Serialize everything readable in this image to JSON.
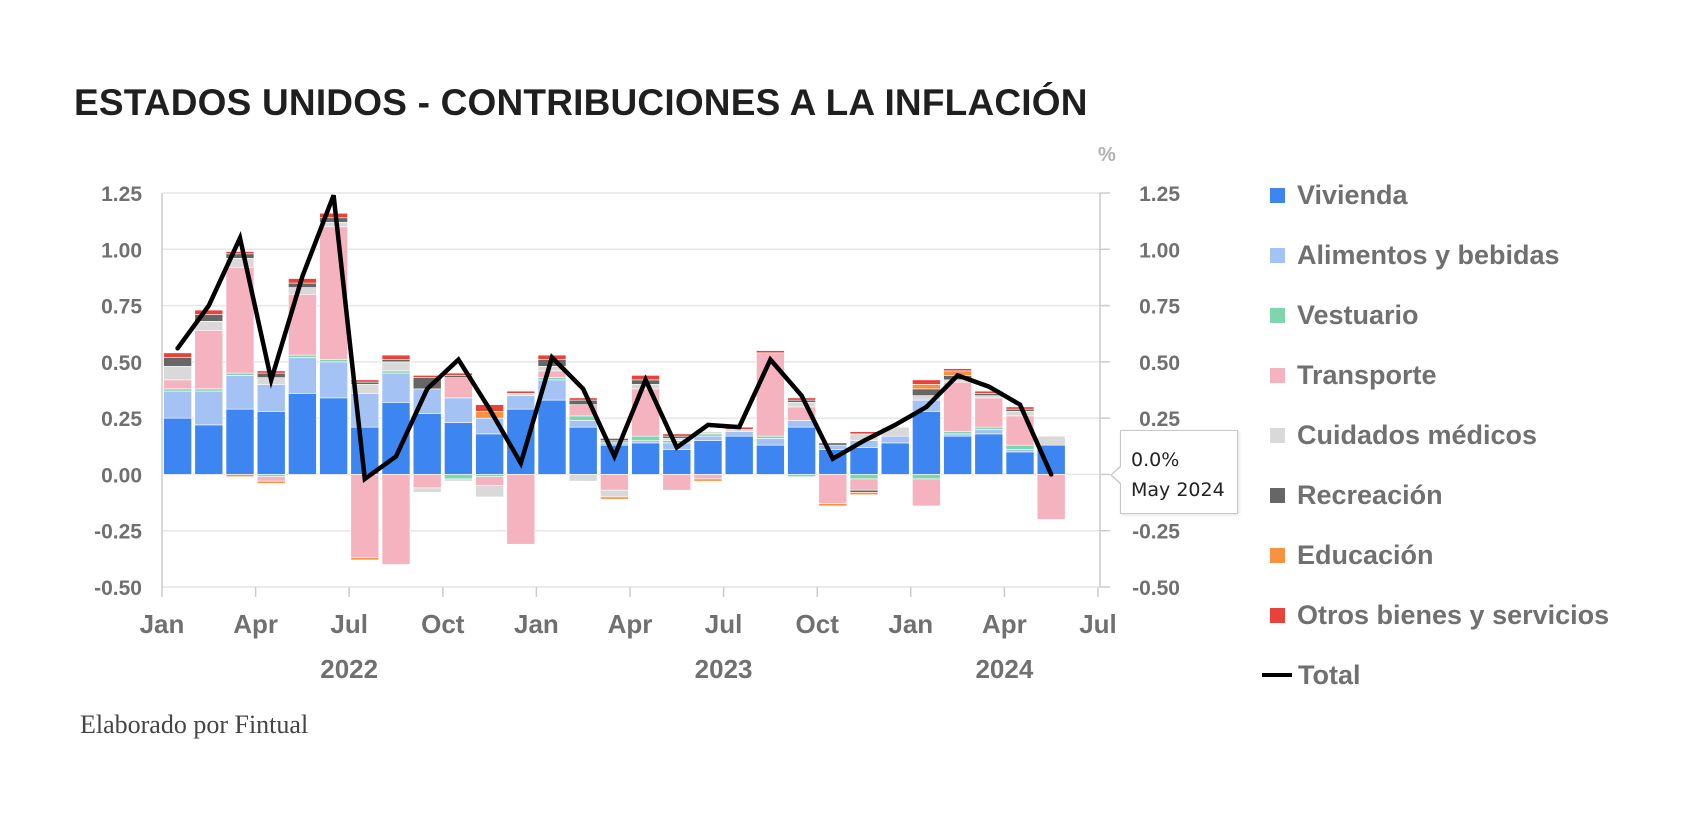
{
  "title": "ESTADOS UNIDOS - CONTRIBUCIONES A LA INFLACIÓN",
  "credit": "Elaborado por Fintual",
  "chart_data": {
    "type": "bar",
    "stacked": true,
    "title": "ESTADOS UNIDOS - CONTRIBUCIONES A LA INFLACIÓN",
    "unit_label": "%",
    "ylim": [
      -0.5,
      1.25
    ],
    "yticks": [
      "1.25",
      "1.00",
      "0.75",
      "0.50",
      "0.25",
      "0.00",
      "-0.25",
      "-0.50"
    ],
    "ytick_values": [
      1.25,
      1.0,
      0.75,
      0.5,
      0.25,
      0.0,
      -0.25,
      -0.5
    ],
    "x_month_labels": [
      "Jan",
      "Apr",
      "Jul",
      "Oct",
      "Jan",
      "Apr",
      "Jul",
      "Oct",
      "Jan",
      "Apr",
      "Jul"
    ],
    "x_year_labels": [
      "2022",
      "2023",
      "2024"
    ],
    "categories": [
      "2022-01",
      "2022-02",
      "2022-03",
      "2022-04",
      "2022-05",
      "2022-06",
      "2022-07",
      "2022-08",
      "2022-09",
      "2022-10",
      "2022-11",
      "2022-12",
      "2023-01",
      "2023-02",
      "2023-03",
      "2023-04",
      "2023-05",
      "2023-06",
      "2023-07",
      "2023-08",
      "2023-09",
      "2023-10",
      "2023-11",
      "2023-12",
      "2024-01",
      "2024-02",
      "2024-03",
      "2024-04",
      "2024-05"
    ],
    "series": [
      {
        "name": "Vivienda",
        "color": "#3d85f0",
        "values": [
          0.25,
          0.22,
          0.29,
          0.28,
          0.36,
          0.34,
          0.21,
          0.32,
          0.27,
          0.23,
          0.18,
          0.29,
          0.33,
          0.21,
          0.13,
          0.14,
          0.11,
          0.15,
          0.17,
          0.13,
          0.21,
          0.11,
          0.12,
          0.14,
          0.28,
          0.17,
          0.18,
          0.1,
          0.13
        ]
      },
      {
        "name": "Alimentos y bebidas",
        "color": "#a4c2f4",
        "values": [
          0.12,
          0.15,
          0.15,
          0.12,
          0.16,
          0.16,
          0.15,
          0.13,
          0.11,
          0.11,
          0.07,
          0.06,
          0.09,
          0.03,
          0.01,
          0.01,
          0.03,
          0.02,
          0.02,
          0.03,
          0.03,
          0.02,
          0.03,
          0.03,
          0.05,
          0.01,
          0.02,
          0.01,
          0.0
        ]
      },
      {
        "name": "Vestuario",
        "color": "#7fd6ae",
        "values": [
          0.01,
          0.01,
          0.01,
          -0.01,
          0.01,
          0.01,
          0.0,
          0.01,
          0.0,
          -0.02,
          -0.01,
          0.0,
          0.01,
          0.02,
          0.01,
          0.02,
          0.01,
          0.01,
          0.0,
          0.01,
          -0.01,
          0.0,
          -0.02,
          0.0,
          -0.02,
          0.01,
          0.01,
          0.02,
          0.0
        ]
      },
      {
        "name": "Transporte",
        "color": "#f4b3bf",
        "values": [
          0.04,
          0.26,
          0.47,
          -0.02,
          0.27,
          0.59,
          -0.37,
          -0.4,
          -0.06,
          0.09,
          -0.04,
          -0.31,
          0.03,
          0.05,
          -0.07,
          0.21,
          -0.07,
          -0.02,
          0.0,
          0.37,
          0.06,
          -0.13,
          -0.05,
          0.0,
          -0.12,
          0.22,
          0.13,
          0.13,
          -0.2
        ]
      },
      {
        "name": "Cuidados médicos",
        "color": "#d9d9d9",
        "values": [
          0.06,
          0.04,
          0.04,
          0.03,
          0.03,
          0.02,
          0.04,
          0.04,
          -0.02,
          -0.01,
          -0.05,
          0.01,
          0.02,
          -0.03,
          -0.03,
          0.02,
          0.01,
          0.01,
          0.01,
          0.0,
          0.02,
          0.0,
          0.03,
          0.04,
          0.02,
          0.01,
          0.01,
          0.02,
          0.04
        ]
      },
      {
        "name": "Recreación",
        "color": "#666666",
        "values": [
          0.04,
          0.03,
          0.02,
          0.02,
          0.02,
          0.02,
          0.01,
          0.01,
          0.05,
          0.01,
          0.0,
          0.0,
          0.03,
          0.02,
          0.01,
          0.02,
          0.01,
          0.0,
          0.0,
          0.0,
          0.01,
          0.01,
          -0.01,
          0.0,
          0.03,
          0.02,
          0.01,
          0.01,
          0.0
        ]
      },
      {
        "name": "Educación",
        "color": "#f79240",
        "values": [
          0.0,
          0.0,
          -0.01,
          -0.01,
          0.0,
          0.0,
          -0.01,
          0.0,
          0.0,
          0.0,
          0.03,
          0.0,
          0.0,
          0.0,
          -0.01,
          0.0,
          0.0,
          -0.01,
          0.0,
          0.0,
          0.0,
          -0.01,
          -0.01,
          0.0,
          0.02,
          0.02,
          0.0,
          0.0,
          0.0
        ]
      },
      {
        "name": "Otros bienes y servicios",
        "color": "#e8433a",
        "values": [
          0.02,
          0.02,
          0.01,
          0.01,
          0.02,
          0.02,
          0.01,
          0.02,
          0.01,
          0.01,
          0.03,
          0.01,
          0.02,
          0.01,
          0.0,
          0.02,
          0.01,
          0.0,
          0.01,
          0.01,
          0.01,
          0.0,
          0.01,
          0.0,
          0.02,
          0.01,
          0.01,
          0.01,
          0.0
        ]
      }
    ],
    "total": {
      "name": "Total",
      "color": "#000000",
      "values": [
        0.56,
        0.75,
        1.05,
        0.42,
        0.88,
        1.24,
        -0.02,
        0.08,
        0.38,
        0.51,
        0.29,
        0.05,
        0.52,
        0.38,
        0.08,
        0.42,
        0.12,
        0.22,
        0.21,
        0.51,
        0.35,
        0.07,
        0.15,
        0.22,
        0.3,
        0.44,
        0.39,
        0.31,
        0.0
      ]
    },
    "tooltip": {
      "value": "0.0%",
      "label": "May 2024"
    }
  }
}
